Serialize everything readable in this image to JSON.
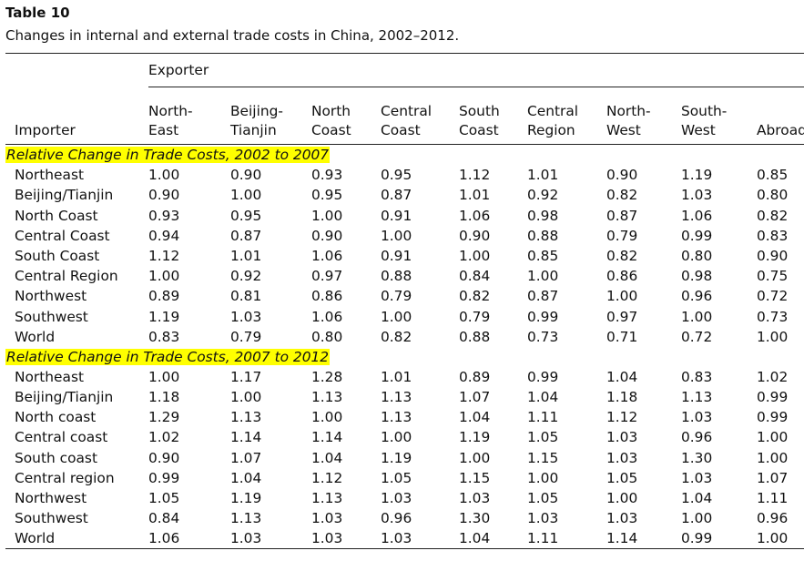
{
  "caption": {
    "label": "Table 10",
    "text": "Changes in internal and external trade costs in China, 2002–2012."
  },
  "table": {
    "group_header": "Exporter",
    "row_header": "Importer",
    "columns": [
      "North-\nEast",
      "Beijing-\nTianjin",
      "North\nCoast",
      "Central\nCoast",
      "South\nCoast",
      "Central\nRegion",
      "North-\nWest",
      "South-\nWest",
      "Abroad"
    ],
    "sections": [
      {
        "label": "Relative Change in Trade Costs, 2002 to 2007",
        "rows": [
          {
            "name": "Northeast",
            "values": [
              "1.00",
              "0.90",
              "0.93",
              "0.95",
              "1.12",
              "1.01",
              "0.90",
              "1.19",
              "0.85"
            ]
          },
          {
            "name": "Beijing/Tianjin",
            "values": [
              "0.90",
              "1.00",
              "0.95",
              "0.87",
              "1.01",
              "0.92",
              "0.82",
              "1.03",
              "0.80"
            ]
          },
          {
            "name": "North Coast",
            "values": [
              "0.93",
              "0.95",
              "1.00",
              "0.91",
              "1.06",
              "0.98",
              "0.87",
              "1.06",
              "0.82"
            ]
          },
          {
            "name": "Central Coast",
            "values": [
              "0.94",
              "0.87",
              "0.90",
              "1.00",
              "0.90",
              "0.88",
              "0.79",
              "0.99",
              "0.83"
            ]
          },
          {
            "name": "South Coast",
            "values": [
              "1.12",
              "1.01",
              "1.06",
              "0.91",
              "1.00",
              "0.85",
              "0.82",
              "0.80",
              "0.90"
            ]
          },
          {
            "name": "Central Region",
            "values": [
              "1.00",
              "0.92",
              "0.97",
              "0.88",
              "0.84",
              "1.00",
              "0.86",
              "0.98",
              "0.75"
            ]
          },
          {
            "name": "Northwest",
            "values": [
              "0.89",
              "0.81",
              "0.86",
              "0.79",
              "0.82",
              "0.87",
              "1.00",
              "0.96",
              "0.72"
            ]
          },
          {
            "name": "Southwest",
            "values": [
              "1.19",
              "1.03",
              "1.06",
              "1.00",
              "0.79",
              "0.99",
              "0.97",
              "1.00",
              "0.73"
            ]
          },
          {
            "name": "World",
            "values": [
              "0.83",
              "0.79",
              "0.80",
              "0.82",
              "0.88",
              "0.73",
              "0.71",
              "0.72",
              "1.00"
            ]
          }
        ]
      },
      {
        "label": "Relative Change in Trade Costs, 2007 to 2012",
        "rows": [
          {
            "name": "Northeast",
            "values": [
              "1.00",
              "1.17",
              "1.28",
              "1.01",
              "0.89",
              "0.99",
              "1.04",
              "0.83",
              "1.02"
            ]
          },
          {
            "name": "Beijing/Tianjin",
            "values": [
              "1.18",
              "1.00",
              "1.13",
              "1.13",
              "1.07",
              "1.04",
              "1.18",
              "1.13",
              "0.99"
            ]
          },
          {
            "name": "North coast",
            "values": [
              "1.29",
              "1.13",
              "1.00",
              "1.13",
              "1.04",
              "1.11",
              "1.12",
              "1.03",
              "0.99"
            ]
          },
          {
            "name": "Central coast",
            "values": [
              "1.02",
              "1.14",
              "1.14",
              "1.00",
              "1.19",
              "1.05",
              "1.03",
              "0.96",
              "1.00"
            ]
          },
          {
            "name": "South coast",
            "values": [
              "0.90",
              "1.07",
              "1.04",
              "1.19",
              "1.00",
              "1.15",
              "1.03",
              "1.30",
              "1.00"
            ]
          },
          {
            "name": "Central region",
            "values": [
              "0.99",
              "1.04",
              "1.12",
              "1.05",
              "1.15",
              "1.00",
              "1.05",
              "1.03",
              "1.07"
            ]
          },
          {
            "name": "Northwest",
            "values": [
              "1.05",
              "1.19",
              "1.13",
              "1.03",
              "1.03",
              "1.05",
              "1.00",
              "1.04",
              "1.11"
            ]
          },
          {
            "name": "Southwest",
            "values": [
              "0.84",
              "1.13",
              "1.03",
              "0.96",
              "1.30",
              "1.03",
              "1.03",
              "1.00",
              "0.96"
            ]
          },
          {
            "name": "World",
            "values": [
              "1.06",
              "1.03",
              "1.03",
              "1.03",
              "1.04",
              "1.11",
              "1.14",
              "0.99",
              "1.00"
            ]
          }
        ]
      }
    ],
    "highlight_color": "#ffff00"
  }
}
